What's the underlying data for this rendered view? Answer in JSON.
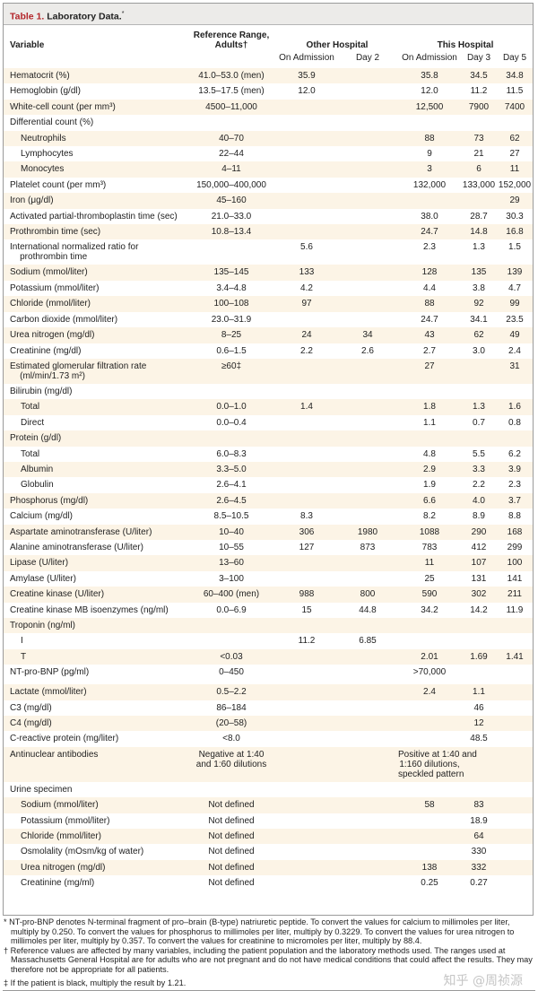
{
  "title": {
    "number": "Table 1.",
    "text": " Laboratory Data.",
    "mark": "*"
  },
  "header": {
    "variable": "Variable",
    "reference": "Reference Range, Adults†",
    "other_hospital": "Other Hospital",
    "this_hospital": "This Hospital",
    "sub": [
      "On Admission",
      "Day 2",
      "On Admission",
      "Day 3",
      "Day 5"
    ]
  },
  "colors": {
    "title_accent": "#b3262b",
    "stripe": "#fcf4e6",
    "title_bar": "#ecebe9"
  },
  "rows": [
    {
      "v": "Hematocrit (%)",
      "c": [
        "41.0–53.0 (men)",
        "35.9",
        "",
        "35.8",
        "34.5",
        "34.8"
      ]
    },
    {
      "v": "Hemoglobin (g/dl)",
      "c": [
        "13.5–17.5 (men)",
        "12.0",
        "",
        "12.0",
        "11.2",
        "11.5"
      ]
    },
    {
      "v": "White-cell count (per mm³)",
      "c": [
        "4500–11,000",
        "",
        "",
        "12,500",
        "7900",
        "7400"
      ]
    },
    {
      "v": "Differential count (%)",
      "c": [
        "",
        "",
        "",
        "",
        "",
        ""
      ]
    },
    {
      "v": "Neutrophils",
      "i": true,
      "c": [
        "40–70",
        "",
        "",
        "88",
        "73",
        "62"
      ]
    },
    {
      "v": "Lymphocytes",
      "i": true,
      "c": [
        "22–44",
        "",
        "",
        "9",
        "21",
        "27"
      ]
    },
    {
      "v": "Monocytes",
      "i": true,
      "c": [
        "4–11",
        "",
        "",
        "3",
        "6",
        "11"
      ]
    },
    {
      "v": "Platelet count (per mm³)",
      "c": [
        "150,000–400,000",
        "",
        "",
        "132,000",
        "133,000",
        "152,000"
      ]
    },
    {
      "v": "Iron (μg/dl)",
      "c": [
        "45–160",
        "",
        "",
        "",
        "",
        "29"
      ]
    },
    {
      "v": "Activated partial-thromboplastin time (sec)",
      "c": [
        "21.0–33.0",
        "",
        "",
        "38.0",
        "28.7",
        "30.3"
      ]
    },
    {
      "v": "Prothrombin time (sec)",
      "c": [
        "10.8–13.4",
        "",
        "",
        "24.7",
        "14.8",
        "16.8"
      ]
    },
    {
      "v": "International normalized ratio for\n    prothrombin time",
      "m": true,
      "c": [
        "",
        "5.6",
        "",
        "2.3",
        "1.3",
        "1.5"
      ]
    },
    {
      "v": "Sodium (mmol/liter)",
      "c": [
        "135–145",
        "133",
        "",
        "128",
        "135",
        "139"
      ]
    },
    {
      "v": "Potassium (mmol/liter)",
      "c": [
        "3.4–4.8",
        "4.2",
        "",
        "4.4",
        "3.8",
        "4.7"
      ]
    },
    {
      "v": "Chloride (mmol/liter)",
      "c": [
        "100–108",
        "97",
        "",
        "88",
        "92",
        "99"
      ]
    },
    {
      "v": "Carbon dioxide (mmol/liter)",
      "c": [
        "23.0–31.9",
        "",
        "",
        "24.7",
        "34.1",
        "23.5"
      ]
    },
    {
      "v": "Urea nitrogen (mg/dl)",
      "c": [
        "8–25",
        "24",
        "34",
        "43",
        "62",
        "49"
      ]
    },
    {
      "v": "Creatinine (mg/dl)",
      "c": [
        "0.6–1.5",
        "2.2",
        "2.6",
        "2.7",
        "3.0",
        "2.4"
      ]
    },
    {
      "v": "Estimated glomerular filtration rate\n    (ml/min/1.73 m²)",
      "m": true,
      "c": [
        "≥60‡",
        "",
        "",
        "27",
        "",
        "31"
      ]
    },
    {
      "v": "Bilirubin (mg/dl)",
      "c": [
        "",
        "",
        "",
        "",
        "",
        ""
      ]
    },
    {
      "v": "Total",
      "i": true,
      "c": [
        "0.0–1.0",
        "1.4",
        "",
        "1.8",
        "1.3",
        "1.6"
      ]
    },
    {
      "v": "Direct",
      "i": true,
      "c": [
        "0.0–0.4",
        "",
        "",
        "1.1",
        "0.7",
        "0.8"
      ]
    },
    {
      "v": "Protein (g/dl)",
      "c": [
        "",
        "",
        "",
        "",
        "",
        ""
      ]
    },
    {
      "v": "Total",
      "i": true,
      "c": [
        "6.0–8.3",
        "",
        "",
        "4.8",
        "5.5",
        "6.2"
      ]
    },
    {
      "v": "Albumin",
      "i": true,
      "c": [
        "3.3–5.0",
        "",
        "",
        "2.9",
        "3.3",
        "3.9"
      ]
    },
    {
      "v": "Globulin",
      "i": true,
      "c": [
        "2.6–4.1",
        "",
        "",
        "1.9",
        "2.2",
        "2.3"
      ]
    },
    {
      "v": "Phosphorus (mg/dl)",
      "c": [
        "2.6–4.5",
        "",
        "",
        "6.6",
        "4.0",
        "3.7"
      ]
    },
    {
      "v": "Calcium (mg/dl)",
      "c": [
        "8.5–10.5",
        "8.3",
        "",
        "8.2",
        "8.9",
        "8.8"
      ]
    },
    {
      "v": "Aspartate aminotransferase (U/liter)",
      "c": [
        "10–40",
        "306",
        "1980",
        "1088",
        "290",
        "168"
      ]
    },
    {
      "v": "Alanine aminotransferase (U/liter)",
      "c": [
        "10–55",
        "127",
        "873",
        "783",
        "412",
        "299"
      ]
    },
    {
      "v": "Lipase (U/liter)",
      "c": [
        "13–60",
        "",
        "",
        "11",
        "107",
        "100"
      ]
    },
    {
      "v": "Amylase (U/liter)",
      "c": [
        "3–100",
        "",
        "",
        "25",
        "131",
        "141"
      ]
    },
    {
      "v": "Creatine kinase (U/liter)",
      "c": [
        "60–400 (men)",
        "988",
        "800",
        "590",
        "302",
        "211"
      ]
    },
    {
      "v": "Creatine kinase MB isoenzymes (ng/ml)",
      "c": [
        "0.0–6.9",
        "15",
        "44.8",
        "34.2",
        "14.2",
        "11.9"
      ]
    },
    {
      "v": "Troponin (ng/ml)",
      "c": [
        "",
        "",
        "",
        "",
        "",
        ""
      ]
    },
    {
      "v": "I",
      "i": true,
      "c": [
        "",
        "11.2",
        "6.85",
        "",
        "",
        ""
      ]
    },
    {
      "v": "T",
      "i": true,
      "c": [
        "<0.03",
        "",
        "",
        "2.01",
        "1.69",
        "1.41"
      ]
    },
    {
      "v": "NT-pro-BNP (pg/ml)",
      "t": true,
      "c": [
        "0–450",
        "",
        "",
        ">70,000",
        "",
        ""
      ]
    },
    {
      "v": "Lactate (mmol/liter)",
      "c": [
        "0.5–2.2",
        "",
        "",
        "2.4",
        "1.1",
        ""
      ]
    },
    {
      "v": "C3 (mg/dl)",
      "c": [
        "86–184",
        "",
        "",
        "",
        "46",
        ""
      ]
    },
    {
      "v": "C4 (mg/dl)",
      "c": [
        "(20–58)",
        "",
        "",
        "",
        "12",
        ""
      ]
    },
    {
      "v": "C-reactive protein (mg/liter)",
      "c": [
        "<8.0",
        "",
        "",
        "",
        "48.5",
        ""
      ]
    },
    {
      "v": "Antinuclear antibodies",
      "m": true,
      "c": [
        "Negative at 1:40\nand 1:60 dilutions",
        "",
        "",
        "Positive at 1:40 and\n1:160 dilutions,\nspeckled pattern",
        "",
        ""
      ]
    },
    {
      "v": "Urine specimen",
      "c": [
        "",
        "",
        "",
        "",
        "",
        ""
      ]
    },
    {
      "v": "Sodium (mmol/liter)",
      "i": true,
      "c": [
        "Not defined",
        "",
        "",
        "58",
        "83",
        ""
      ]
    },
    {
      "v": "Potassium (mmol/liter)",
      "i": true,
      "c": [
        "Not defined",
        "",
        "",
        "",
        "18.9",
        ""
      ]
    },
    {
      "v": "Chloride (mmol/liter)",
      "i": true,
      "c": [
        "Not defined",
        "",
        "",
        "",
        "64",
        ""
      ]
    },
    {
      "v": "Osmolality (mOsm/kg of water)",
      "i": true,
      "c": [
        "Not defined",
        "",
        "",
        "",
        "330",
        ""
      ]
    },
    {
      "v": "Urea nitrogen (mg/dl)",
      "i": true,
      "c": [
        "Not defined",
        "",
        "",
        "138",
        "332",
        ""
      ]
    },
    {
      "v": "Creatinine (mg/ml)",
      "i": true,
      "c": [
        "Not defined",
        "",
        "",
        "0.25",
        "0.27",
        ""
      ]
    }
  ],
  "footnotes": [
    "* NT-pro-BNP denotes N-terminal fragment of pro–brain (B-type) natriuretic peptide. To convert the values for calcium to millimoles per liter, multiply by 0.250. To convert the values for phosphorus to millimoles per liter, multiply by 0.3229. To convert the values for urea nitrogen to millimoles per liter, multiply by 0.357. To convert the values for creatinine to micromoles per liter, multiply by 88.4.",
    "† Reference values are affected by many variables, including the patient population and the laboratory methods used. The ranges used at Massachusetts General Hospital are for adults who are not pregnant and do not have medical conditions that could affect the results. They may therefore not be appropriate for all patients.",
    "‡ If the patient is black, multiply the result by 1.21."
  ],
  "watermark": "知乎 @周祯源"
}
